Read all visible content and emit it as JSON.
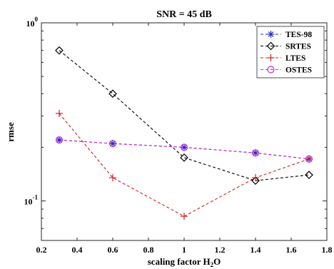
{
  "chart_data": {
    "type": "line",
    "title": "SNR = 45 dB",
    "xlabel": "scaling factor H",
    "xlabel_sub": "2",
    "xlabel_tail": "O",
    "ylabel": "rmse",
    "xlim": [
      0.2,
      1.8
    ],
    "ylim": [
      0.06,
      1.0
    ],
    "yscale": "log",
    "grid": false,
    "legend_position": "top-right",
    "x_ticks": [
      0.2,
      0.4,
      0.6,
      0.8,
      1,
      1.2,
      1.4,
      1.6,
      1.8
    ],
    "x_tick_labels": [
      "0.2",
      "0.4",
      "0.6",
      "0.8",
      "1",
      "1.2",
      "1.4",
      "1.6",
      "1.8"
    ],
    "y_major_ticks": [
      0.1,
      1
    ],
    "y_tick_labels": [
      {
        "base": "10",
        "exp": "-1"
      },
      {
        "base": "10",
        "exp": "0"
      }
    ],
    "x": [
      0.3,
      0.6,
      1.0,
      1.4,
      1.7
    ],
    "series": [
      {
        "name": "TES-98",
        "values": [
          0.22,
          0.21,
          0.2,
          0.186,
          0.172
        ],
        "color": "#1f2bcc",
        "marker": "asterisk"
      },
      {
        "name": "SRTES",
        "values": [
          0.7,
          0.4,
          0.175,
          0.13,
          0.14
        ],
        "color": "#000000",
        "marker": "diamond"
      },
      {
        "name": "LTES",
        "values": [
          0.31,
          0.135,
          0.082,
          0.135,
          0.172
        ],
        "color": "#d42020",
        "marker": "plus"
      },
      {
        "name": "OSTES",
        "values": [
          0.22,
          0.21,
          0.2,
          0.186,
          0.172
        ],
        "color": "#d22ad2",
        "marker": "circle"
      }
    ]
  }
}
